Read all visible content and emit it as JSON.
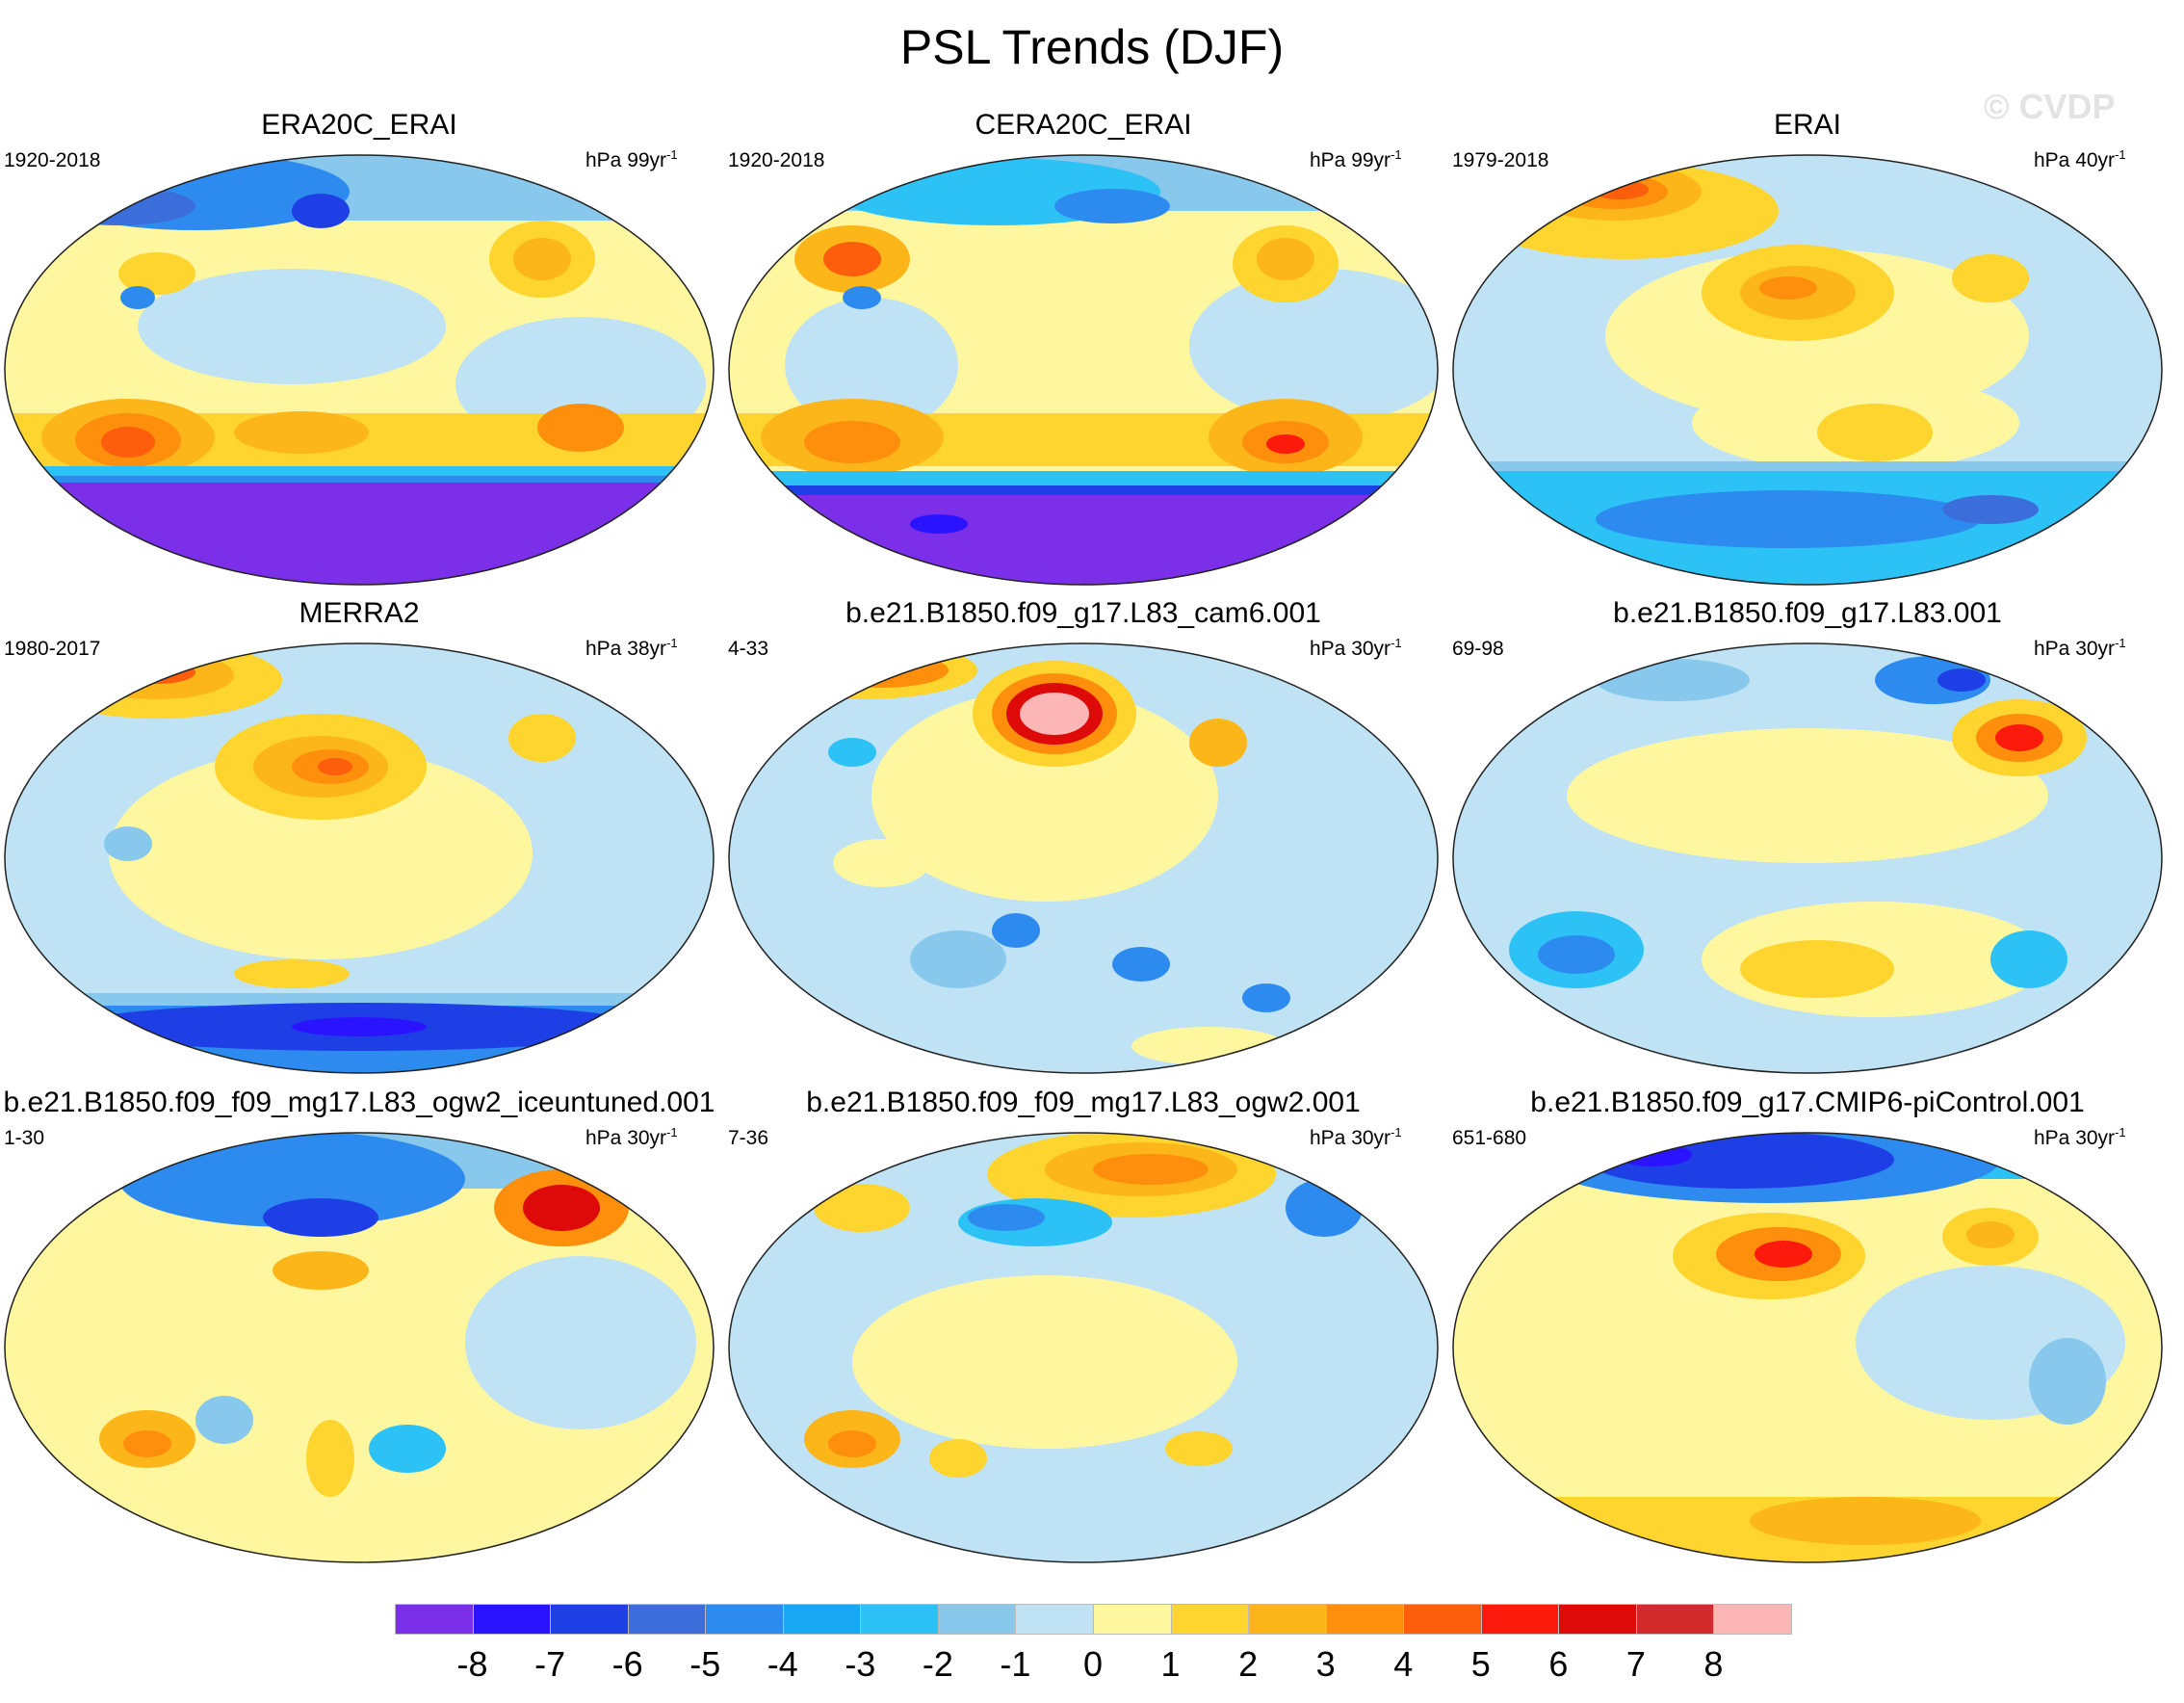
{
  "figure": {
    "title": "PSL Trends (DJF)",
    "watermark": "© CVDP"
  },
  "panels": [
    {
      "title": "ERA20C_ERAI",
      "years": "1920-2018",
      "units": "hPa 99yr",
      "unit_exp": "-1"
    },
    {
      "title": "CERA20C_ERAI",
      "years": "1920-2018",
      "units": "hPa 99yr",
      "unit_exp": "-1"
    },
    {
      "title": "ERAI",
      "years": "1979-2018",
      "units": "hPa 40yr",
      "unit_exp": "-1"
    },
    {
      "title": "MERRA2",
      "years": "1980-2017",
      "units": "hPa 38yr",
      "unit_exp": "-1"
    },
    {
      "title": "b.e21.B1850.f09_g17.L83_cam6.001",
      "years": "4-33",
      "units": "hPa 30yr",
      "unit_exp": "-1"
    },
    {
      "title": "b.e21.B1850.f09_g17.L83.001",
      "years": "69-98",
      "units": "hPa 30yr",
      "unit_exp": "-1"
    },
    {
      "title": "b.e21.B1850.f09_f09_mg17.L83_ogw2_iceuntuned.001",
      "years": "1-30",
      "units": "hPa 30yr",
      "unit_exp": "-1"
    },
    {
      "title": "b.e21.B1850.f09_f09_mg17.L83_ogw2.001",
      "years": "7-36",
      "units": "hPa 30yr",
      "unit_exp": "-1"
    },
    {
      "title": "b.e21.B1850.f09_g17.CMIP6-piControl.001",
      "years": "651-680",
      "units": "hPa 30yr",
      "unit_exp": "-1"
    }
  ],
  "colorbar": {
    "labels": [
      "-8",
      "-7",
      "-6",
      "-5",
      "-4",
      "-3",
      "-2",
      "-1",
      "0",
      "1",
      "2",
      "3",
      "4",
      "5",
      "6",
      "7",
      "8"
    ],
    "colors": [
      "#7b2fe8",
      "#2a14ff",
      "#1f3fe6",
      "#3b6ddb",
      "#2d8bef",
      "#18a8f3",
      "#2cc2f6",
      "#87c8ec",
      "#bfe3f4",
      "#fff6a0",
      "#fed42f",
      "#fdb61a",
      "#fd8f0c",
      "#fc5e0c",
      "#fb1a0c",
      "#de0a0a",
      "#d32b2b",
      "#fcb6b6"
    ]
  }
}
